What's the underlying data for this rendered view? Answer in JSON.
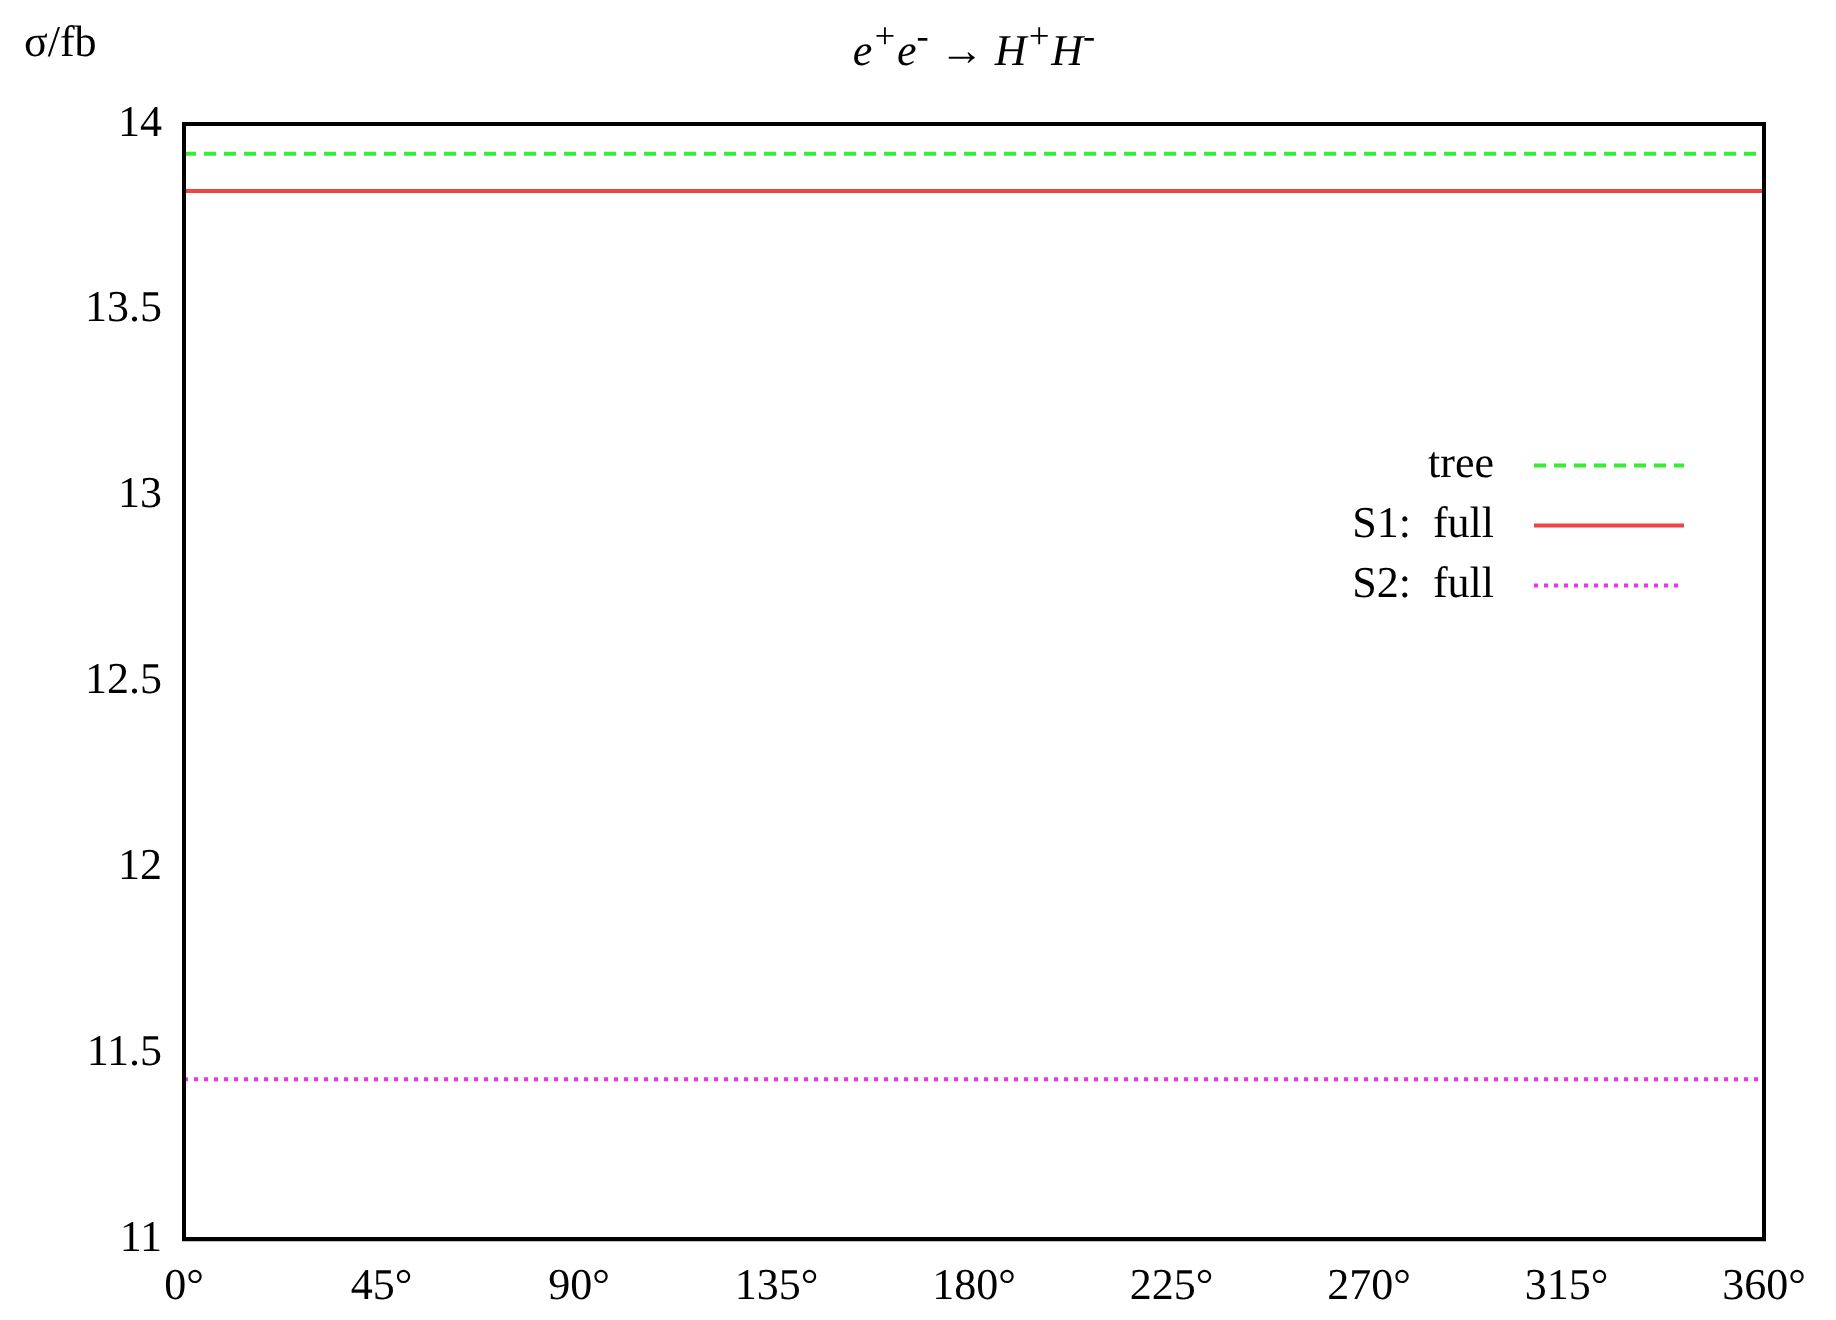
{
  "chart_data": {
    "type": "line",
    "title": "e$^{+}$e$^{-}$ → H$^{+}$H$^{-}$",
    "ylabel": "σ/fb",
    "x": [
      0,
      360
    ],
    "xlim": [
      0,
      360
    ],
    "xticks": [
      {
        "value": 0,
        "label": "0°"
      },
      {
        "value": 45,
        "label": "45°"
      },
      {
        "value": 90,
        "label": "90°"
      },
      {
        "value": 135,
        "label": "135°"
      },
      {
        "value": 180,
        "label": "180°"
      },
      {
        "value": 225,
        "label": "225°"
      },
      {
        "value": 270,
        "label": "270°"
      },
      {
        "value": 315,
        "label": "315°"
      },
      {
        "value": 360,
        "label": "360°"
      }
    ],
    "ylim": [
      11,
      14
    ],
    "yticks": [
      11,
      11.5,
      12,
      12.5,
      13,
      13.5,
      14
    ],
    "grid": false,
    "legend": "right",
    "marker": "none",
    "series": [
      {
        "name": "tree",
        "color": "#33ee33",
        "values": [
          13.92,
          13.92
        ],
        "line_style": "dashed"
      },
      {
        "name": "S1:  full",
        "color": "#ee4444",
        "values": [
          13.82,
          13.82
        ],
        "line_style": "solid"
      },
      {
        "name": "S2:  full",
        "color": "#ee33ee",
        "values": [
          11.43,
          11.43
        ],
        "line_style": "dotted"
      }
    ]
  }
}
